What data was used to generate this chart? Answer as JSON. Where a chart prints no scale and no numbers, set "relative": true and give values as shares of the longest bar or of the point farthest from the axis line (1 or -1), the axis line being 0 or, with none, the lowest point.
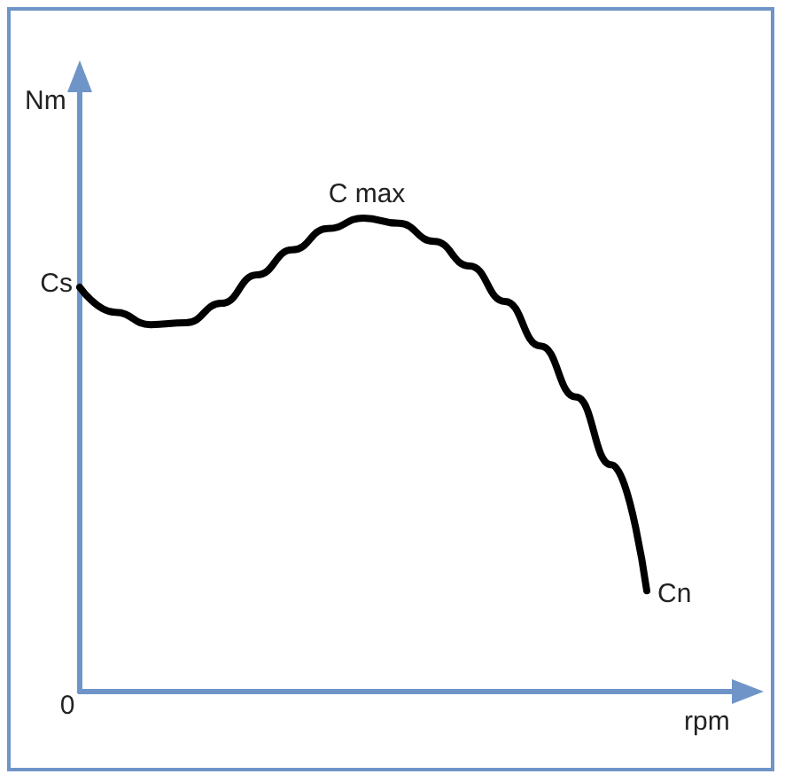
{
  "chart_data": {
    "type": "line",
    "relative": true,
    "xlabel": "rpm",
    "ylabel": "Nm",
    "grid": false,
    "marker": "none",
    "line_style": "solid",
    "categories": [
      null,
      null,
      null,
      null,
      null,
      null,
      null,
      null,
      null,
      null,
      null,
      null,
      null,
      null,
      null,
      null,
      null
    ],
    "series": [
      {
        "color": "#000000",
        "values": [
          0.854,
          0.801,
          0.775,
          0.779,
          0.82,
          0.88,
          0.933,
          0.978,
          1,
          0.989,
          0.951,
          0.899,
          0.824,
          0.73,
          0.622,
          0.479,
          0.213
        ]
      }
    ],
    "annotations": [
      "0",
      "Cs",
      "C max",
      "Cn"
    ]
  }
}
